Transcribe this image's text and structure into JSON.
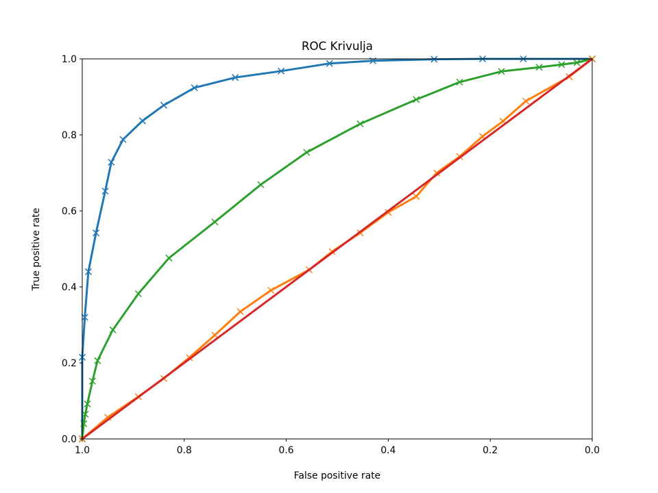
{
  "chart_data": {
    "type": "line",
    "title": "ROC Krivulja",
    "xlabel": "False positive rate",
    "ylabel": "True positive rate",
    "xlim": [
      1.0,
      0.0
    ],
    "ylim": [
      0.0,
      1.0
    ],
    "x_ticks": [
      "1.0",
      "0.8",
      "0.6",
      "0.4",
      "0.2",
      "0.0"
    ],
    "x_tick_values": [
      1.0,
      0.8,
      0.6,
      0.4,
      0.2,
      0.0
    ],
    "y_ticks": [
      "0.0",
      "0.2",
      "0.4",
      "0.6",
      "0.8",
      "1.0"
    ],
    "y_tick_values": [
      0.0,
      0.2,
      0.4,
      0.6,
      0.8,
      1.0
    ],
    "grid": false,
    "series": [
      {
        "name": "series-blue",
        "color": "#1f77b4",
        "marker": "x",
        "x": [
          1.0,
          1.0,
          0.995,
          0.988,
          0.973,
          0.955,
          0.943,
          0.92,
          0.882,
          0.84,
          0.78,
          0.7,
          0.61,
          0.515,
          0.43,
          0.31,
          0.215,
          0.135,
          0.0
        ],
        "y": [
          0.0,
          0.215,
          0.32,
          0.44,
          0.542,
          0.652,
          0.728,
          0.788,
          0.837,
          0.878,
          0.924,
          0.951,
          0.968,
          0.988,
          0.995,
          0.999,
          1.0,
          1.0,
          1.0
        ]
      },
      {
        "name": "series-green",
        "color": "#2ca02c",
        "marker": "x",
        "x": [
          1.0,
          0.997,
          0.994,
          0.99,
          0.98,
          0.97,
          0.94,
          0.89,
          0.83,
          0.74,
          0.65,
          0.56,
          0.455,
          0.345,
          0.26,
          0.178,
          0.104,
          0.06,
          0.03,
          0.0
        ],
        "y": [
          0.0,
          0.04,
          0.065,
          0.092,
          0.152,
          0.206,
          0.287,
          0.382,
          0.476,
          0.571,
          0.669,
          0.754,
          0.829,
          0.893,
          0.939,
          0.967,
          0.978,
          0.985,
          0.99,
          1.0
        ]
      },
      {
        "name": "series-orange",
        "color": "#ff7f0e",
        "marker": "x",
        "x": [
          1.0,
          0.95,
          0.89,
          0.84,
          0.79,
          0.74,
          0.69,
          0.63,
          0.555,
          0.51,
          0.455,
          0.4,
          0.345,
          0.305,
          0.26,
          0.215,
          0.175,
          0.13,
          0.045,
          0.0
        ],
        "y": [
          0.0,
          0.057,
          0.111,
          0.159,
          0.214,
          0.273,
          0.335,
          0.391,
          0.445,
          0.493,
          0.542,
          0.596,
          0.638,
          0.7,
          0.743,
          0.796,
          0.836,
          0.889,
          0.953,
          1.0
        ]
      },
      {
        "name": "series-red",
        "color": "#d62728",
        "marker": "none",
        "x": [
          1.0,
          0.0
        ],
        "y": [
          0.0,
          1.0
        ]
      }
    ]
  }
}
